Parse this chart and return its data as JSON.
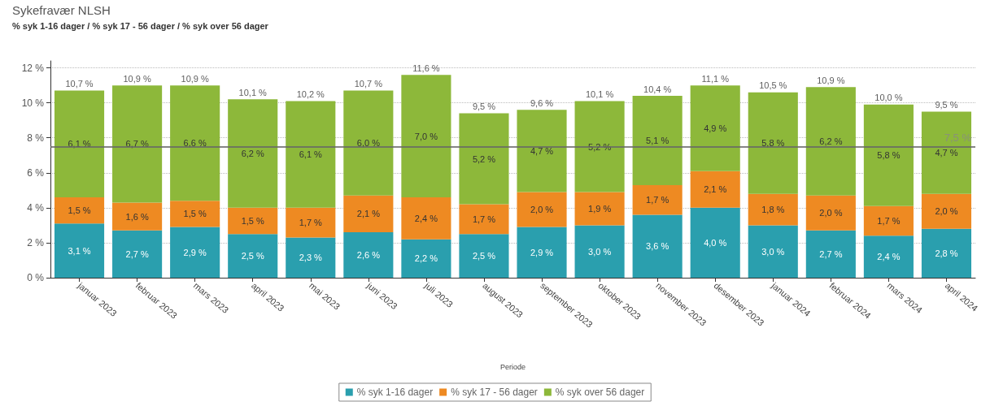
{
  "chart_data": {
    "type": "bar",
    "stacked": true,
    "title": "Sykefravær NLSH",
    "subtitle": "% syk 1-16 dager / % syk 17 - 56 dager / % syk over 56 dager",
    "xlabel": "Periode",
    "categories": [
      "januar 2023",
      "februar 2023",
      "mars 2023",
      "april 2023",
      "mai 2023",
      "juni 2023",
      "juli 2023",
      "august 2023",
      "september 2023",
      "oktober 2023",
      "november 2023",
      "desember 2023",
      "januar 2024",
      "februar 2024",
      "mars 2024",
      "april 2024"
    ],
    "series": [
      {
        "name": "% syk 1-16 dager",
        "color": "#2a9fae",
        "values": [
          3.1,
          2.7,
          2.9,
          2.5,
          2.3,
          2.6,
          2.2,
          2.5,
          2.9,
          3.0,
          3.6,
          4.0,
          3.0,
          2.7,
          2.4,
          2.8
        ],
        "value_labels": [
          "3,1 %",
          "2,7 %",
          "2,9 %",
          "2,5 %",
          "2,3 %",
          "2,6 %",
          "2,2 %",
          "2,5 %",
          "2,9 %",
          "3,0 %",
          "3,6 %",
          "4,0 %",
          "3,0 %",
          "2,7 %",
          "2,4 %",
          "2,8 %"
        ]
      },
      {
        "name": "% syk 17 - 56 dager",
        "color": "#ee8a22",
        "values": [
          1.5,
          1.6,
          1.5,
          1.5,
          1.7,
          2.1,
          2.4,
          1.7,
          2.0,
          1.9,
          1.7,
          2.1,
          1.8,
          2.0,
          1.7,
          2.0
        ],
        "value_labels": [
          "1,5 %",
          "1,6 %",
          "1,5 %",
          "1,5 %",
          "1,7 %",
          "2,1 %",
          "2,4 %",
          "1,7 %",
          "2,0 %",
          "1,9 %",
          "1,7 %",
          "2,1 %",
          "1,8 %",
          "2,0 %",
          "1,7 %",
          "2,0 %"
        ]
      },
      {
        "name": "% syk over 56 dager",
        "color": "#8db83a",
        "values": [
          6.1,
          6.7,
          6.6,
          6.2,
          6.1,
          6.0,
          7.0,
          5.2,
          4.7,
          5.2,
          5.1,
          4.9,
          5.8,
          6.2,
          5.8,
          4.7
        ],
        "value_labels": [
          "6,1 %",
          "6,7 %",
          "6,6 %",
          "6,2 %",
          "6,1 %",
          "6,0 %",
          "7,0 %",
          "5,2 %",
          "4,7 %",
          "5,2 %",
          "5,1 %",
          "4,9 %",
          "5,8 %",
          "6,2 %",
          "5,8 %",
          "4,7 %"
        ]
      }
    ],
    "totals": [
      "10,7 %",
      "10,9 %",
      "10,9 %",
      "10,1 %",
      "10,2 %",
      "10,7 %",
      "11,6 %",
      "9,5 %",
      "9,6 %",
      "10,1 %",
      "10,4 %",
      "11,1 %",
      "10,5 %",
      "10,9 %",
      "10,0 %",
      "9,5 %"
    ],
    "ylim": [
      0,
      12.4
    ],
    "yticks": [
      {
        "value": 0,
        "label": "0 %"
      },
      {
        "value": 2,
        "label": "2 %"
      },
      {
        "value": 4,
        "label": "4 %"
      },
      {
        "value": 6,
        "label": "6 %"
      },
      {
        "value": 8,
        "label": "8 %"
      },
      {
        "value": 10,
        "label": "10 %"
      },
      {
        "value": 12,
        "label": "12 %"
      }
    ],
    "ref_lines": [
      {
        "axis": "y",
        "value": 7.5,
        "label": "7,5 %",
        "color": "#666666"
      }
    ],
    "grid": "y",
    "legend": "bottom"
  }
}
